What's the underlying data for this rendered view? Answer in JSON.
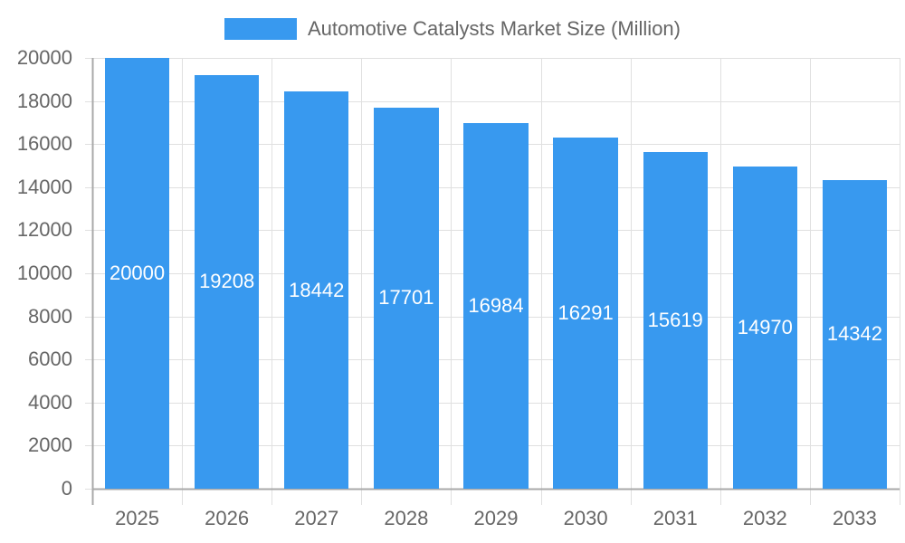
{
  "legend": {
    "label": "Automotive Catalysts Market Size (Million)",
    "color": "#3899ef"
  },
  "colors": {
    "bar": "#3899ef",
    "grid": "#e0e0e0",
    "axis": "#a8a8a8",
    "tick_text": "#666666",
    "bar_label_text": "#ffffff"
  },
  "chart_data": {
    "type": "bar",
    "title": "",
    "categories": [
      "2025",
      "2026",
      "2027",
      "2028",
      "2029",
      "2030",
      "2031",
      "2032",
      "2033"
    ],
    "series": [
      {
        "name": "Automotive Catalysts Market Size (Million)",
        "values": [
          20000,
          19208,
          18442,
          17701,
          16984,
          16291,
          15619,
          14970,
          14342
        ]
      }
    ],
    "xlabel": "",
    "ylabel": "",
    "ylim": [
      0,
      20000
    ],
    "yticks": [
      0,
      2000,
      4000,
      6000,
      8000,
      10000,
      12000,
      14000,
      16000,
      18000,
      20000
    ],
    "grid": true,
    "legend_position": "top",
    "data_labels": true
  }
}
